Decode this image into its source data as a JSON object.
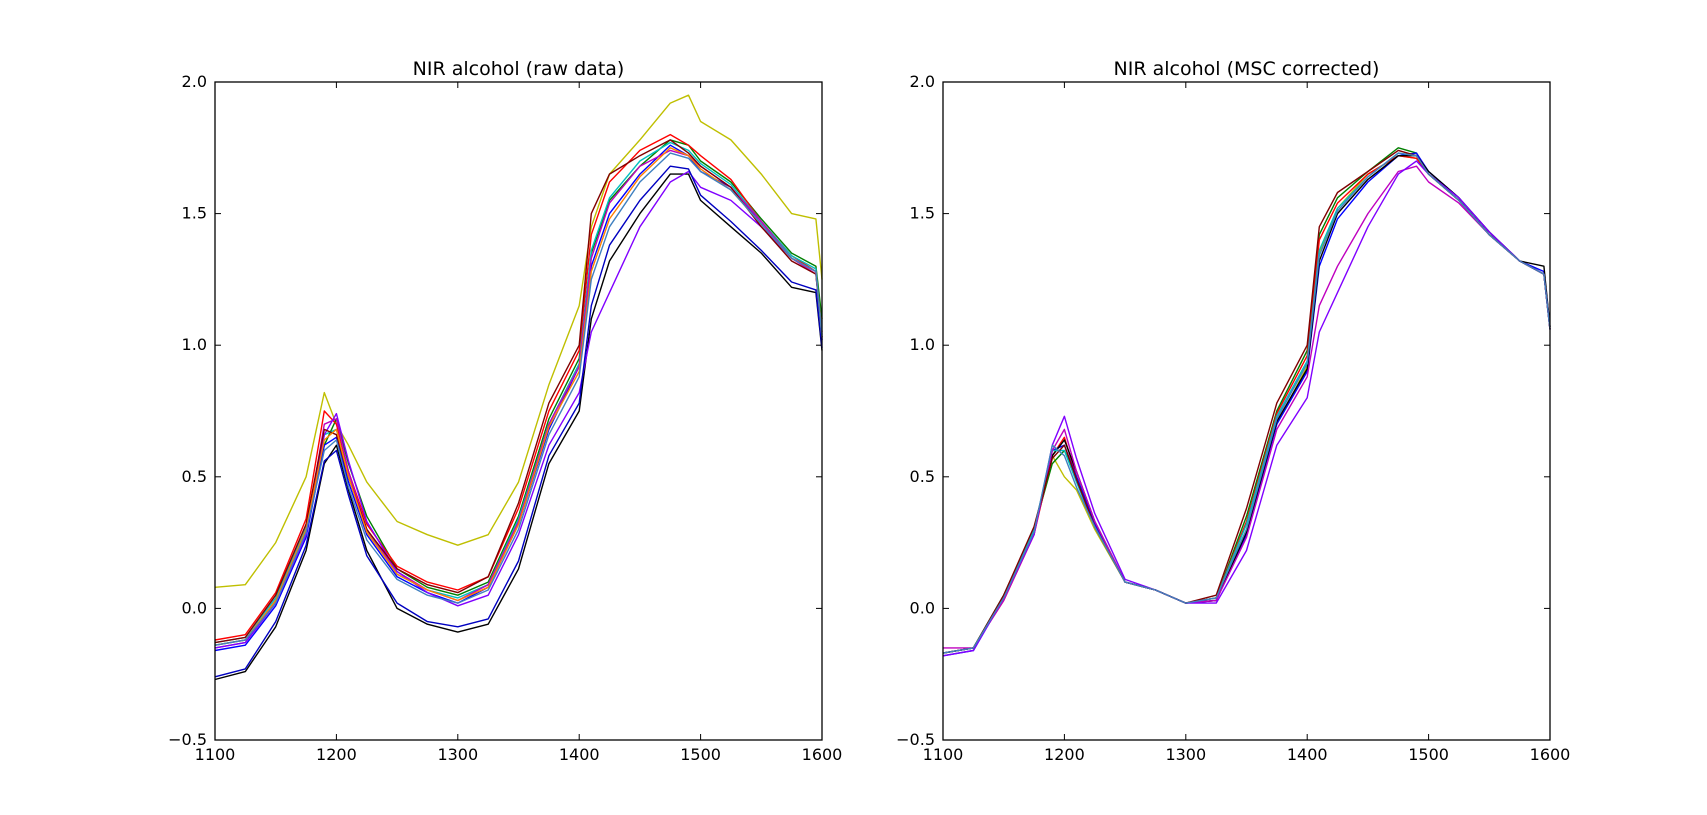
{
  "chart_data": [
    {
      "type": "line",
      "title": "NIR alcohol (raw data)",
      "xlabel": "",
      "ylabel": "",
      "xlim": [
        1100,
        1600
      ],
      "ylim": [
        -0.5,
        2.0
      ],
      "xticks": [
        "1100",
        "1200",
        "1300",
        "1400",
        "1500",
        "1600"
      ],
      "yticks": [
        "−0.5",
        "0.0",
        "0.5",
        "1.0",
        "1.5",
        "2.0"
      ],
      "grid": false,
      "x": [
        1100,
        1125,
        1150,
        1175,
        1190,
        1200,
        1210,
        1225,
        1250,
        1275,
        1300,
        1325,
        1350,
        1375,
        1400,
        1410,
        1425,
        1450,
        1475,
        1490,
        1500,
        1525,
        1550,
        1575,
        1595,
        1600
      ],
      "series": [
        {
          "color": "#bfbf00",
          "values": [
            0.08,
            0.09,
            0.25,
            0.5,
            0.82,
            0.7,
            0.62,
            0.48,
            0.33,
            0.28,
            0.24,
            0.28,
            0.48,
            0.85,
            1.15,
            1.45,
            1.65,
            1.78,
            1.92,
            1.95,
            1.85,
            1.78,
            1.65,
            1.5,
            1.48,
            1.25
          ]
        },
        {
          "color": "#008000",
          "values": [
            -0.14,
            -0.12,
            0.03,
            0.3,
            0.62,
            0.72,
            0.55,
            0.35,
            0.15,
            0.08,
            0.05,
            0.1,
            0.35,
            0.72,
            0.95,
            1.35,
            1.55,
            1.68,
            1.78,
            1.76,
            1.7,
            1.62,
            1.48,
            1.35,
            1.3,
            1.1
          ]
        },
        {
          "color": "#ff0000",
          "values": [
            -0.12,
            -0.1,
            0.06,
            0.34,
            0.75,
            0.7,
            0.52,
            0.32,
            0.16,
            0.1,
            0.07,
            0.12,
            0.38,
            0.75,
            0.98,
            1.42,
            1.62,
            1.74,
            1.8,
            1.76,
            1.72,
            1.63,
            1.47,
            1.34,
            1.28,
            1.05
          ]
        },
        {
          "color": "#0000ff",
          "values": [
            -0.16,
            -0.14,
            0.01,
            0.27,
            0.62,
            0.65,
            0.48,
            0.28,
            0.12,
            0.06,
            0.02,
            0.08,
            0.32,
            0.68,
            0.92,
            1.3,
            1.5,
            1.65,
            1.76,
            1.72,
            1.66,
            1.6,
            1.46,
            1.33,
            1.28,
            1.02
          ]
        },
        {
          "color": "#000000",
          "values": [
            -0.27,
            -0.24,
            -0.07,
            0.22,
            0.55,
            0.62,
            0.45,
            0.22,
            0.0,
            -0.06,
            -0.09,
            -0.06,
            0.15,
            0.55,
            0.75,
            1.1,
            1.32,
            1.5,
            1.65,
            1.65,
            1.55,
            1.45,
            1.35,
            1.22,
            1.2,
            0.98
          ]
        },
        {
          "color": "#00bfbf",
          "values": [
            -0.13,
            -0.11,
            0.04,
            0.31,
            0.66,
            0.68,
            0.5,
            0.3,
            0.13,
            0.07,
            0.04,
            0.09,
            0.34,
            0.7,
            0.93,
            1.36,
            1.56,
            1.7,
            1.77,
            1.74,
            1.69,
            1.61,
            1.47,
            1.34,
            1.29,
            1.04
          ]
        },
        {
          "color": "#bf00bf",
          "values": [
            -0.15,
            -0.13,
            0.02,
            0.29,
            0.7,
            0.72,
            0.52,
            0.3,
            0.14,
            0.07,
            0.03,
            0.09,
            0.33,
            0.7,
            0.92,
            1.33,
            1.54,
            1.68,
            1.74,
            1.72,
            1.68,
            1.6,
            1.47,
            1.33,
            1.27,
            1.03
          ]
        },
        {
          "color": "#8000ff",
          "values": [
            -0.15,
            -0.13,
            0.02,
            0.28,
            0.66,
            0.74,
            0.56,
            0.33,
            0.14,
            0.06,
            0.01,
            0.05,
            0.28,
            0.62,
            0.82,
            1.05,
            1.2,
            1.45,
            1.62,
            1.66,
            1.6,
            1.55,
            1.45,
            1.33,
            1.28,
            1.02
          ]
        },
        {
          "color": "#800000",
          "values": [
            -0.13,
            -0.11,
            0.05,
            0.32,
            0.68,
            0.66,
            0.5,
            0.3,
            0.15,
            0.09,
            0.06,
            0.12,
            0.4,
            0.78,
            1.0,
            1.5,
            1.65,
            1.72,
            1.78,
            1.73,
            1.68,
            1.6,
            1.45,
            1.32,
            1.27,
            1.03
          ]
        },
        {
          "color": "#0000c0",
          "values": [
            -0.26,
            -0.23,
            -0.05,
            0.24,
            0.56,
            0.6,
            0.43,
            0.2,
            0.02,
            -0.05,
            -0.07,
            -0.04,
            0.18,
            0.58,
            0.78,
            1.15,
            1.38,
            1.55,
            1.68,
            1.67,
            1.57,
            1.47,
            1.36,
            1.24,
            1.21,
            0.99
          ]
        },
        {
          "color": "#ff8000",
          "values": [
            -0.14,
            -0.12,
            0.03,
            0.3,
            0.64,
            0.68,
            0.5,
            0.29,
            0.13,
            0.07,
            0.03,
            0.08,
            0.32,
            0.69,
            0.9,
            1.28,
            1.48,
            1.64,
            1.75,
            1.72,
            1.67,
            1.59,
            1.46,
            1.33,
            1.28,
            1.03
          ]
        },
        {
          "color": "#4080c0",
          "values": [
            -0.14,
            -0.12,
            0.02,
            0.29,
            0.6,
            0.64,
            0.46,
            0.26,
            0.11,
            0.05,
            0.02,
            0.07,
            0.3,
            0.66,
            0.88,
            1.25,
            1.45,
            1.62,
            1.73,
            1.71,
            1.66,
            1.59,
            1.46,
            1.33,
            1.28,
            1.03
          ]
        }
      ]
    },
    {
      "type": "line",
      "title": "NIR alcohol (MSC corrected)",
      "xlabel": "",
      "ylabel": "",
      "xlim": [
        1100,
        1600
      ],
      "ylim": [
        -0.5,
        2.0
      ],
      "xticks": [
        "1100",
        "1200",
        "1300",
        "1400",
        "1500",
        "1600"
      ],
      "yticks": [
        "−0.5",
        "0.0",
        "0.5",
        "1.0",
        "1.5",
        "2.0"
      ],
      "grid": false,
      "x": [
        1100,
        1125,
        1150,
        1175,
        1190,
        1200,
        1210,
        1225,
        1250,
        1275,
        1300,
        1325,
        1350,
        1375,
        1400,
        1410,
        1425,
        1450,
        1475,
        1490,
        1500,
        1525,
        1550,
        1575,
        1595,
        1600
      ],
      "series": [
        {
          "color": "#bfbf00",
          "values": [
            -0.17,
            -0.15,
            0.05,
            0.3,
            0.58,
            0.5,
            0.45,
            0.3,
            0.1,
            0.07,
            0.02,
            0.04,
            0.3,
            0.7,
            0.92,
            1.35,
            1.52,
            1.65,
            1.72,
            1.71,
            1.65,
            1.55,
            1.42,
            1.32,
            1.27,
            1.07
          ]
        },
        {
          "color": "#008000",
          "values": [
            -0.17,
            -0.15,
            0.05,
            0.3,
            0.55,
            0.6,
            0.5,
            0.32,
            0.1,
            0.07,
            0.02,
            0.04,
            0.35,
            0.75,
            0.98,
            1.42,
            1.56,
            1.66,
            1.75,
            1.73,
            1.65,
            1.55,
            1.42,
            1.32,
            1.27,
            1.06
          ]
        },
        {
          "color": "#ff0000",
          "values": [
            -0.17,
            -0.15,
            0.03,
            0.28,
            0.58,
            0.65,
            0.5,
            0.31,
            0.1,
            0.07,
            0.02,
            0.04,
            0.33,
            0.74,
            0.96,
            1.4,
            1.54,
            1.65,
            1.72,
            1.71,
            1.65,
            1.55,
            1.42,
            1.32,
            1.27,
            1.06
          ]
        },
        {
          "color": "#0000ff",
          "values": [
            -0.18,
            -0.16,
            0.04,
            0.29,
            0.6,
            0.62,
            0.5,
            0.32,
            0.1,
            0.07,
            0.02,
            0.03,
            0.28,
            0.7,
            0.9,
            1.3,
            1.48,
            1.62,
            1.72,
            1.73,
            1.66,
            1.56,
            1.43,
            1.32,
            1.28,
            1.07
          ]
        },
        {
          "color": "#000000",
          "values": [
            -0.17,
            -0.15,
            0.04,
            0.29,
            0.58,
            0.64,
            0.52,
            0.33,
            0.1,
            0.07,
            0.02,
            0.03,
            0.29,
            0.71,
            0.91,
            1.32,
            1.5,
            1.63,
            1.72,
            1.72,
            1.66,
            1.56,
            1.43,
            1.32,
            1.3,
            1.07
          ]
        },
        {
          "color": "#00bfbf",
          "values": [
            -0.17,
            -0.15,
            0.05,
            0.3,
            0.6,
            0.6,
            0.48,
            0.31,
            0.1,
            0.07,
            0.02,
            0.04,
            0.32,
            0.73,
            0.94,
            1.36,
            1.52,
            1.64,
            1.73,
            1.72,
            1.65,
            1.55,
            1.42,
            1.32,
            1.27,
            1.06
          ]
        },
        {
          "color": "#bf00bf",
          "values": [
            -0.15,
            -0.15,
            0.03,
            0.28,
            0.6,
            0.68,
            0.52,
            0.33,
            0.1,
            0.07,
            0.02,
            0.03,
            0.27,
            0.68,
            0.88,
            1.15,
            1.3,
            1.5,
            1.66,
            1.68,
            1.62,
            1.54,
            1.42,
            1.32,
            1.27,
            1.06
          ]
        },
        {
          "color": "#8000ff",
          "values": [
            -0.18,
            -0.16,
            0.04,
            0.28,
            0.62,
            0.73,
            0.57,
            0.36,
            0.11,
            0.07,
            0.02,
            0.02,
            0.22,
            0.62,
            0.8,
            1.05,
            1.2,
            1.45,
            1.65,
            1.7,
            1.65,
            1.56,
            1.43,
            1.32,
            1.27,
            1.06
          ]
        },
        {
          "color": "#800000",
          "values": [
            -0.17,
            -0.15,
            0.05,
            0.31,
            0.57,
            0.62,
            0.49,
            0.31,
            0.1,
            0.07,
            0.02,
            0.05,
            0.38,
            0.78,
            1.0,
            1.45,
            1.58,
            1.66,
            1.74,
            1.72,
            1.65,
            1.55,
            1.42,
            1.32,
            1.27,
            1.06
          ]
        },
        {
          "color": "#4080c0",
          "values": [
            -0.17,
            -0.15,
            0.04,
            0.29,
            0.62,
            0.58,
            0.46,
            0.31,
            0.1,
            0.07,
            0.02,
            0.04,
            0.3,
            0.72,
            0.93,
            1.34,
            1.51,
            1.64,
            1.73,
            1.72,
            1.65,
            1.55,
            1.42,
            1.32,
            1.27,
            1.06
          ]
        }
      ]
    }
  ]
}
